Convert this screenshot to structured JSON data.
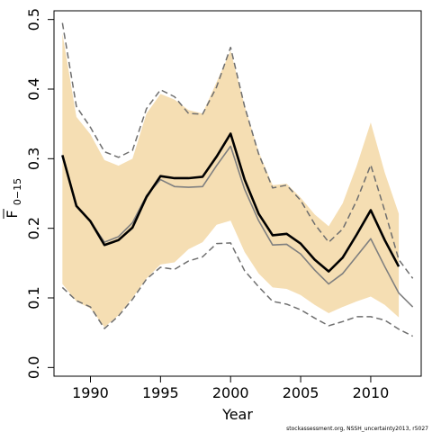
{
  "chart_data": {
    "type": "line",
    "xlabel": "Year",
    "ylabel_main": "F",
    "ylabel_sub": "0−15",
    "credit": "stockassessment.org, NSSH_uncertainty2013, r5027",
    "xlim": [
      1987.4,
      2013.6
    ],
    "ylim": [
      -0.0125,
      0.5125
    ],
    "x_ticks": [
      1990,
      1995,
      2000,
      2005,
      2010
    ],
    "y_ticks": [
      0.0,
      0.1,
      0.2,
      0.3,
      0.4,
      0.5
    ],
    "y_tick_labels": [
      "0.0",
      "0.1",
      "0.2",
      "0.3",
      "0.4",
      "0.5"
    ],
    "x": [
      1988,
      1989,
      1990,
      1991,
      1992,
      1993,
      1994,
      1995,
      1996,
      1997,
      1998,
      1999,
      2000,
      2001,
      2002,
      2003,
      2004,
      2005,
      2006,
      2007,
      2008,
      2009,
      2010,
      2011,
      2012,
      2013
    ],
    "band": {
      "color": "#f5deb3",
      "lower": [
        0.12,
        0.095,
        0.085,
        0.058,
        0.075,
        0.1,
        0.128,
        0.148,
        0.151,
        0.17,
        0.18,
        0.205,
        0.211,
        0.166,
        0.135,
        0.115,
        0.113,
        0.104,
        0.09,
        0.078,
        0.087,
        0.095,
        0.102,
        0.09,
        0.072,
        null
      ],
      "upper": [
        0.48,
        0.36,
        0.335,
        0.298,
        0.29,
        0.3,
        0.365,
        0.393,
        0.385,
        0.37,
        0.365,
        0.41,
        0.455,
        0.376,
        0.31,
        0.262,
        0.264,
        0.244,
        0.22,
        0.203,
        0.236,
        0.29,
        0.352,
        0.28,
        0.221,
        null
      ]
    },
    "series": [
      {
        "style": "thick-black",
        "color": "#000000",
        "values": [
          0.305,
          0.232,
          0.21,
          0.176,
          0.183,
          0.201,
          0.245,
          0.275,
          0.272,
          0.272,
          0.274,
          0.303,
          0.336,
          0.27,
          0.221,
          0.19,
          0.192,
          0.178,
          0.155,
          0.138,
          0.158,
          0.191,
          0.226,
          0.183,
          0.145,
          null
        ]
      },
      {
        "style": "thin-gray",
        "color": "#7f7f7f",
        "values": [
          0.305,
          0.232,
          0.21,
          0.18,
          0.188,
          0.208,
          0.247,
          0.27,
          0.26,
          0.259,
          0.26,
          0.29,
          0.318,
          0.256,
          0.211,
          0.176,
          0.177,
          0.163,
          0.14,
          0.12,
          0.135,
          0.16,
          0.185,
          0.145,
          0.107,
          0.087
        ]
      },
      {
        "style": "dashed-upper",
        "color": "#6e6e6e",
        "values": [
          0.495,
          0.375,
          0.345,
          0.31,
          0.302,
          0.312,
          0.372,
          0.399,
          0.389,
          0.365,
          0.364,
          0.403,
          0.46,
          0.375,
          0.307,
          0.258,
          0.262,
          0.24,
          0.206,
          0.18,
          0.199,
          0.24,
          0.291,
          0.225,
          0.155,
          0.128
        ]
      },
      {
        "style": "dashed-lower",
        "color": "#6e6e6e",
        "values": [
          0.115,
          0.096,
          0.087,
          0.056,
          0.074,
          0.098,
          0.127,
          0.144,
          0.141,
          0.153,
          0.159,
          0.178,
          0.179,
          0.139,
          0.116,
          0.095,
          0.091,
          0.083,
          0.071,
          0.06,
          0.066,
          0.073,
          0.073,
          0.068,
          0.055,
          0.045
        ]
      }
    ]
  }
}
